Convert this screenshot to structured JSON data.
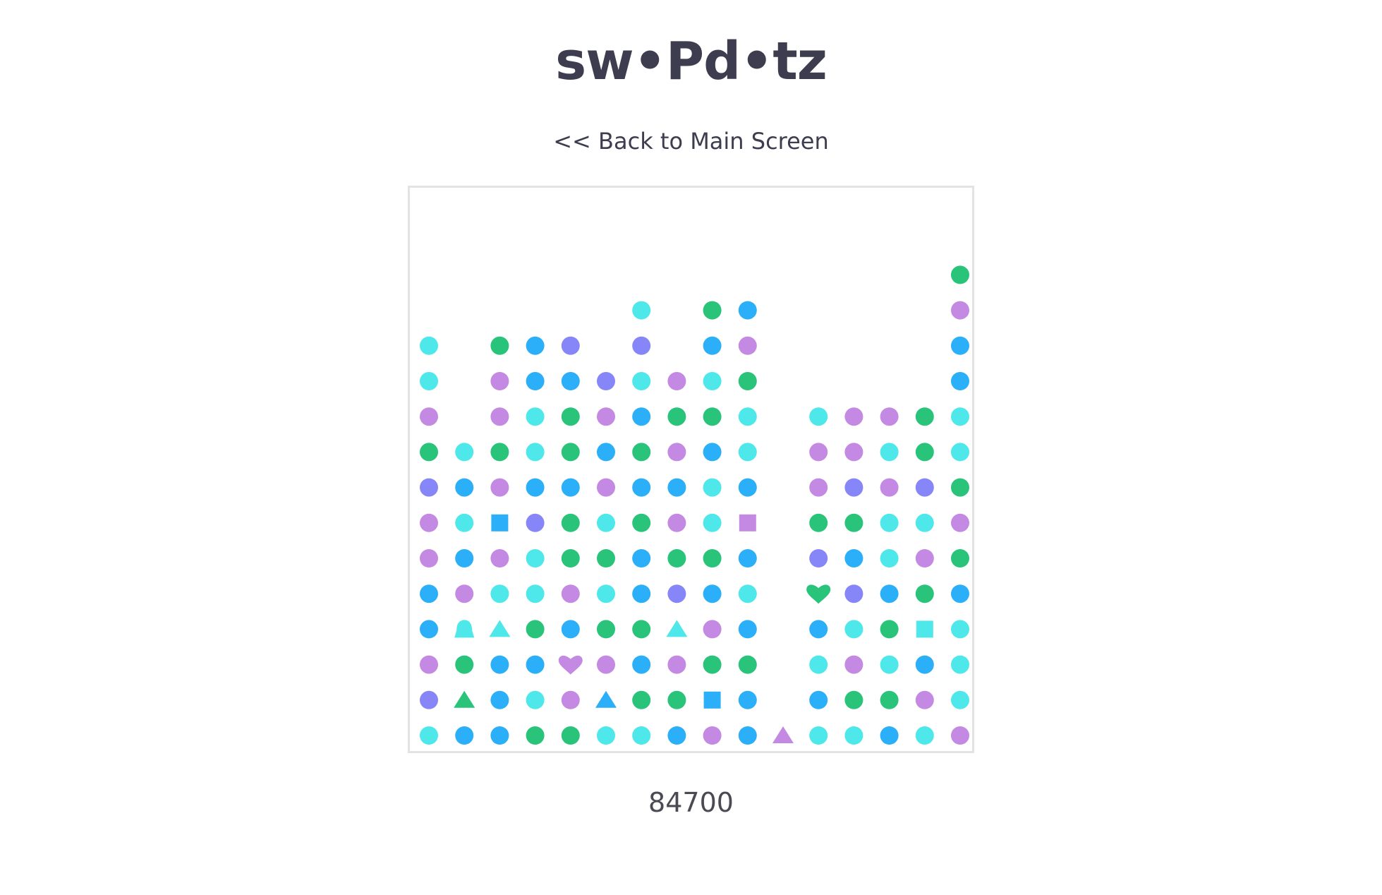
{
  "app": {
    "title": "sw•Pd•tz",
    "back_link": "<< Back to Main Screen",
    "score": "84700"
  },
  "colors": {
    "cyan": "#4ee8ea",
    "blue": "#2aaff8",
    "green": "#29c479",
    "purple": "#c389e3",
    "indigo": "#8786f8",
    "board_border": "#e3e3e3",
    "text": "#3d3d4f"
  },
  "board": {
    "columns": [
      [
        {
          "shape": "circle",
          "color": "cyan"
        },
        {
          "shape": "circle",
          "color": "indigo"
        },
        {
          "shape": "circle",
          "color": "purple"
        },
        {
          "shape": "circle",
          "color": "blue"
        },
        {
          "shape": "circle",
          "color": "blue"
        },
        {
          "shape": "circle",
          "color": "purple"
        },
        {
          "shape": "circle",
          "color": "purple"
        },
        {
          "shape": "circle",
          "color": "indigo"
        },
        {
          "shape": "circle",
          "color": "green"
        },
        {
          "shape": "circle",
          "color": "purple"
        },
        {
          "shape": "circle",
          "color": "cyan"
        },
        {
          "shape": "circle",
          "color": "cyan"
        }
      ],
      [
        {
          "shape": "circle",
          "color": "blue"
        },
        {
          "shape": "triangle",
          "color": "green"
        },
        {
          "shape": "circle",
          "color": "green"
        },
        {
          "shape": "bell",
          "color": "cyan"
        },
        {
          "shape": "circle",
          "color": "purple"
        },
        {
          "shape": "circle",
          "color": "blue"
        },
        {
          "shape": "circle",
          "color": "cyan"
        },
        {
          "shape": "circle",
          "color": "blue"
        },
        {
          "shape": "circle",
          "color": "cyan"
        }
      ],
      [
        {
          "shape": "circle",
          "color": "blue"
        },
        {
          "shape": "circle",
          "color": "blue"
        },
        {
          "shape": "circle",
          "color": "blue"
        },
        {
          "shape": "triangle",
          "color": "cyan"
        },
        {
          "shape": "circle",
          "color": "cyan"
        },
        {
          "shape": "circle",
          "color": "purple"
        },
        {
          "shape": "square",
          "color": "blue"
        },
        {
          "shape": "circle",
          "color": "purple"
        },
        {
          "shape": "circle",
          "color": "green"
        },
        {
          "shape": "circle",
          "color": "purple"
        },
        {
          "shape": "circle",
          "color": "purple"
        },
        {
          "shape": "circle",
          "color": "green"
        }
      ],
      [
        {
          "shape": "circle",
          "color": "green"
        },
        {
          "shape": "circle",
          "color": "cyan"
        },
        {
          "shape": "circle",
          "color": "blue"
        },
        {
          "shape": "circle",
          "color": "green"
        },
        {
          "shape": "circle",
          "color": "cyan"
        },
        {
          "shape": "circle",
          "color": "cyan"
        },
        {
          "shape": "circle",
          "color": "indigo"
        },
        {
          "shape": "circle",
          "color": "blue"
        },
        {
          "shape": "circle",
          "color": "cyan"
        },
        {
          "shape": "circle",
          "color": "cyan"
        },
        {
          "shape": "circle",
          "color": "blue"
        },
        {
          "shape": "circle",
          "color": "blue"
        }
      ],
      [
        {
          "shape": "circle",
          "color": "green"
        },
        {
          "shape": "circle",
          "color": "purple"
        },
        {
          "shape": "heart",
          "color": "purple"
        },
        {
          "shape": "circle",
          "color": "blue"
        },
        {
          "shape": "circle",
          "color": "purple"
        },
        {
          "shape": "circle",
          "color": "green"
        },
        {
          "shape": "circle",
          "color": "green"
        },
        {
          "shape": "circle",
          "color": "blue"
        },
        {
          "shape": "circle",
          "color": "green"
        },
        {
          "shape": "circle",
          "color": "green"
        },
        {
          "shape": "circle",
          "color": "blue"
        },
        {
          "shape": "circle",
          "color": "indigo"
        }
      ],
      [
        {
          "shape": "circle",
          "color": "cyan"
        },
        {
          "shape": "triangle",
          "color": "blue"
        },
        {
          "shape": "circle",
          "color": "purple"
        },
        {
          "shape": "circle",
          "color": "green"
        },
        {
          "shape": "circle",
          "color": "cyan"
        },
        {
          "shape": "circle",
          "color": "green"
        },
        {
          "shape": "circle",
          "color": "cyan"
        },
        {
          "shape": "circle",
          "color": "purple"
        },
        {
          "shape": "circle",
          "color": "blue"
        },
        {
          "shape": "circle",
          "color": "purple"
        },
        {
          "shape": "circle",
          "color": "indigo"
        }
      ],
      [
        {
          "shape": "circle",
          "color": "cyan"
        },
        {
          "shape": "circle",
          "color": "green"
        },
        {
          "shape": "circle",
          "color": "blue"
        },
        {
          "shape": "circle",
          "color": "green"
        },
        {
          "shape": "circle",
          "color": "blue"
        },
        {
          "shape": "circle",
          "color": "blue"
        },
        {
          "shape": "circle",
          "color": "green"
        },
        {
          "shape": "circle",
          "color": "blue"
        },
        {
          "shape": "circle",
          "color": "green"
        },
        {
          "shape": "circle",
          "color": "blue"
        },
        {
          "shape": "circle",
          "color": "cyan"
        },
        {
          "shape": "circle",
          "color": "indigo"
        },
        {
          "shape": "circle",
          "color": "cyan"
        }
      ],
      [
        {
          "shape": "circle",
          "color": "blue"
        },
        {
          "shape": "circle",
          "color": "green"
        },
        {
          "shape": "circle",
          "color": "purple"
        },
        {
          "shape": "triangle",
          "color": "cyan"
        },
        {
          "shape": "circle",
          "color": "indigo"
        },
        {
          "shape": "circle",
          "color": "green"
        },
        {
          "shape": "circle",
          "color": "purple"
        },
        {
          "shape": "circle",
          "color": "blue"
        },
        {
          "shape": "circle",
          "color": "purple"
        },
        {
          "shape": "circle",
          "color": "green"
        },
        {
          "shape": "circle",
          "color": "purple"
        }
      ],
      [
        {
          "shape": "circle",
          "color": "purple"
        },
        {
          "shape": "square",
          "color": "blue"
        },
        {
          "shape": "circle",
          "color": "green"
        },
        {
          "shape": "circle",
          "color": "purple"
        },
        {
          "shape": "circle",
          "color": "blue"
        },
        {
          "shape": "circle",
          "color": "green"
        },
        {
          "shape": "circle",
          "color": "cyan"
        },
        {
          "shape": "circle",
          "color": "cyan"
        },
        {
          "shape": "circle",
          "color": "blue"
        },
        {
          "shape": "circle",
          "color": "green"
        },
        {
          "shape": "circle",
          "color": "cyan"
        },
        {
          "shape": "circle",
          "color": "blue"
        },
        {
          "shape": "circle",
          "color": "green"
        }
      ],
      [
        {
          "shape": "circle",
          "color": "blue"
        },
        {
          "shape": "circle",
          "color": "blue"
        },
        {
          "shape": "circle",
          "color": "green"
        },
        {
          "shape": "circle",
          "color": "blue"
        },
        {
          "shape": "circle",
          "color": "cyan"
        },
        {
          "shape": "circle",
          "color": "blue"
        },
        {
          "shape": "square",
          "color": "purple"
        },
        {
          "shape": "circle",
          "color": "blue"
        },
        {
          "shape": "circle",
          "color": "cyan"
        },
        {
          "shape": "circle",
          "color": "cyan"
        },
        {
          "shape": "circle",
          "color": "green"
        },
        {
          "shape": "circle",
          "color": "purple"
        },
        {
          "shape": "circle",
          "color": "blue"
        }
      ],
      [
        {
          "shape": "triangle",
          "color": "purple"
        }
      ],
      [
        {
          "shape": "circle",
          "color": "cyan"
        },
        {
          "shape": "circle",
          "color": "blue"
        },
        {
          "shape": "circle",
          "color": "cyan"
        },
        {
          "shape": "circle",
          "color": "blue"
        },
        {
          "shape": "heart",
          "color": "green"
        },
        {
          "shape": "circle",
          "color": "indigo"
        },
        {
          "shape": "circle",
          "color": "green"
        },
        {
          "shape": "circle",
          "color": "purple"
        },
        {
          "shape": "circle",
          "color": "purple"
        },
        {
          "shape": "circle",
          "color": "cyan"
        }
      ],
      [
        {
          "shape": "circle",
          "color": "cyan"
        },
        {
          "shape": "circle",
          "color": "green"
        },
        {
          "shape": "circle",
          "color": "purple"
        },
        {
          "shape": "circle",
          "color": "cyan"
        },
        {
          "shape": "circle",
          "color": "indigo"
        },
        {
          "shape": "circle",
          "color": "blue"
        },
        {
          "shape": "circle",
          "color": "green"
        },
        {
          "shape": "circle",
          "color": "indigo"
        },
        {
          "shape": "circle",
          "color": "purple"
        },
        {
          "shape": "circle",
          "color": "purple"
        }
      ],
      [
        {
          "shape": "circle",
          "color": "blue"
        },
        {
          "shape": "circle",
          "color": "green"
        },
        {
          "shape": "circle",
          "color": "cyan"
        },
        {
          "shape": "circle",
          "color": "green"
        },
        {
          "shape": "circle",
          "color": "blue"
        },
        {
          "shape": "circle",
          "color": "cyan"
        },
        {
          "shape": "circle",
          "color": "cyan"
        },
        {
          "shape": "circle",
          "color": "purple"
        },
        {
          "shape": "circle",
          "color": "cyan"
        },
        {
          "shape": "circle",
          "color": "purple"
        }
      ],
      [
        {
          "shape": "circle",
          "color": "cyan"
        },
        {
          "shape": "circle",
          "color": "purple"
        },
        {
          "shape": "circle",
          "color": "blue"
        },
        {
          "shape": "square",
          "color": "cyan"
        },
        {
          "shape": "circle",
          "color": "green"
        },
        {
          "shape": "circle",
          "color": "purple"
        },
        {
          "shape": "circle",
          "color": "cyan"
        },
        {
          "shape": "circle",
          "color": "indigo"
        },
        {
          "shape": "circle",
          "color": "green"
        },
        {
          "shape": "circle",
          "color": "green"
        }
      ],
      [
        {
          "shape": "circle",
          "color": "purple"
        },
        {
          "shape": "circle",
          "color": "cyan"
        },
        {
          "shape": "circle",
          "color": "cyan"
        },
        {
          "shape": "circle",
          "color": "cyan"
        },
        {
          "shape": "circle",
          "color": "blue"
        },
        {
          "shape": "circle",
          "color": "green"
        },
        {
          "shape": "circle",
          "color": "purple"
        },
        {
          "shape": "circle",
          "color": "green"
        },
        {
          "shape": "circle",
          "color": "cyan"
        },
        {
          "shape": "circle",
          "color": "cyan"
        },
        {
          "shape": "circle",
          "color": "blue"
        },
        {
          "shape": "circle",
          "color": "blue"
        },
        {
          "shape": "circle",
          "color": "purple"
        },
        {
          "shape": "circle",
          "color": "green"
        }
      ]
    ]
  }
}
